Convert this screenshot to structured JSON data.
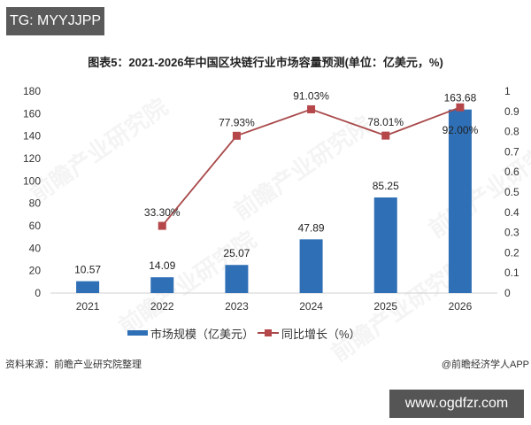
{
  "overlay": {
    "tag": "TG: MYYJJPP",
    "site": "www.ogdfzr.com"
  },
  "watermark": "前瞻产业研究院",
  "footer": {
    "source": "资料来源：前瞻产业研究院整理",
    "credit": "@前瞻经济学人APP"
  },
  "legend": {
    "bar_label": "市场规模（亿美元）",
    "line_label": "同比增长（%）"
  },
  "colors": {
    "bar": "#2e6fb5",
    "line": "#a9494a",
    "marker": "#b5474b",
    "axis": "#d0d0d0"
  },
  "chart_data": {
    "type": "bar+line",
    "title": "图表5：2021-2026年中国区块链行业市场容量预测(单位：亿美元，%)",
    "categories": [
      "2021",
      "2022",
      "2023",
      "2024",
      "2025",
      "2026"
    ],
    "series": [
      {
        "name": "市场规模（亿美元）",
        "type": "bar",
        "axis": "left",
        "values": [
          10.57,
          14.09,
          25.07,
          47.89,
          85.25,
          163.68
        ],
        "labels": [
          "10.57",
          "14.09",
          "25.07",
          "47.89",
          "85.25",
          "163.68"
        ]
      },
      {
        "name": "同比增长（%）",
        "type": "line",
        "axis": "right",
        "values": [
          null,
          0.333,
          0.7793,
          0.9103,
          0.7801,
          0.92
        ],
        "labels": [
          "",
          "33.30%",
          "77.93%",
          "91.03%",
          "78.01%",
          "92.00%"
        ]
      }
    ],
    "y_left": {
      "min": 0,
      "max": 180,
      "step": 20,
      "ticks": [
        "0",
        "20",
        "40",
        "60",
        "80",
        "100",
        "120",
        "140",
        "160",
        "180"
      ]
    },
    "y_right": {
      "min": 0,
      "max": 1,
      "step": 0.1,
      "ticks": [
        "0",
        "0.1",
        "0.2",
        "0.3",
        "0.4",
        "0.5",
        "0.6",
        "0.7",
        "0.8",
        "0.9",
        "1"
      ]
    },
    "xlabel": "",
    "ylabel": "",
    "grid": false,
    "legend_position": "bottom"
  }
}
